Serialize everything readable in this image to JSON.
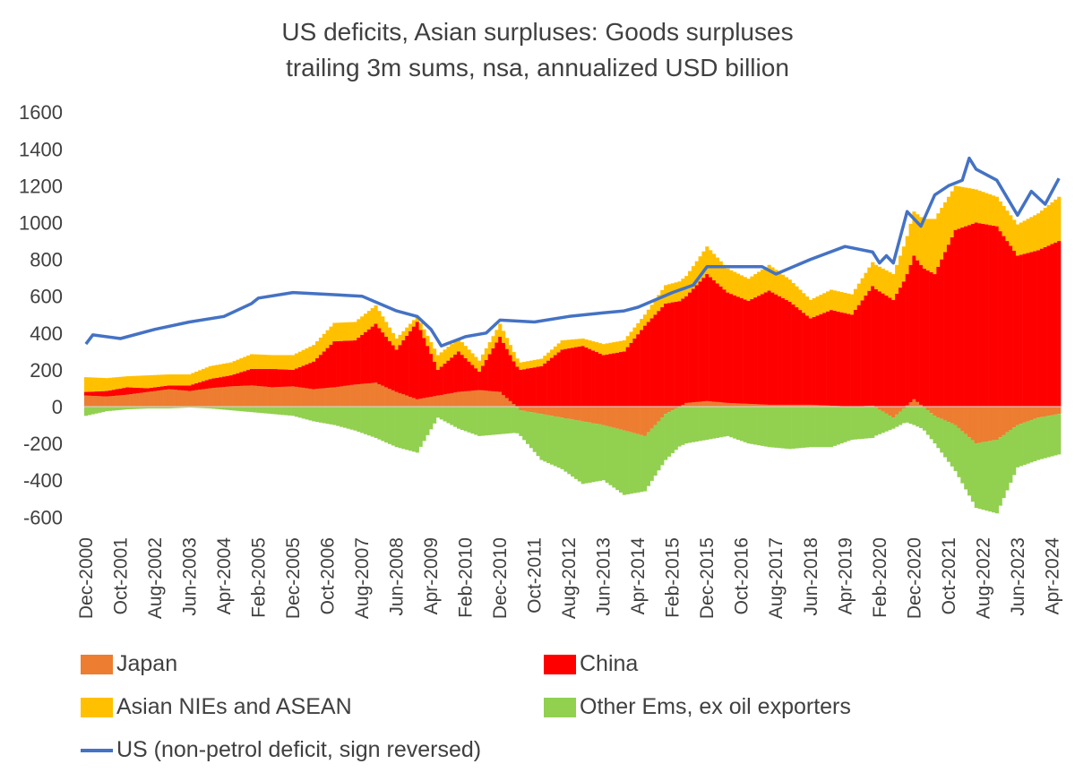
{
  "chart_data": {
    "type": "bar",
    "title": "US deficits, Asian surpluses: Goods surpluses",
    "subtitle": "trailing 3m sums, nsa, annualized USD billion",
    "ylim": [
      -600,
      1600
    ],
    "yticks": [
      -600,
      -400,
      -200,
      0,
      200,
      400,
      600,
      800,
      1000,
      1200,
      1400,
      1600
    ],
    "x_start": "Dec-2000",
    "x_end": "Jun-2024",
    "xtick_labels": [
      "Dec-2000",
      "Oct-2001",
      "Aug-2002",
      "Jun-2003",
      "Apr-2004",
      "Feb-2005",
      "Dec-2005",
      "Oct-2006",
      "Aug-2007",
      "Jun-2008",
      "Apr-2009",
      "Feb-2010",
      "Dec-2010",
      "Oct-2011",
      "Aug-2012",
      "Jun-2013",
      "Apr-2014",
      "Feb-2015",
      "Dec-2015",
      "Oct-2016",
      "Aug-2017",
      "Jun-2018",
      "Apr-2019",
      "Feb-2020",
      "Dec-2020",
      "Oct-2021",
      "Aug-2022",
      "Jun-2023",
      "Apr-2024"
    ],
    "series": [
      {
        "name": "Japan",
        "kind": "stacked-bar",
        "color": "#ed7d31",
        "x": [
          "Dec-2000",
          "Jun-2001",
          "Dec-2001",
          "Jun-2002",
          "Dec-2002",
          "Jun-2003",
          "Dec-2003",
          "Jun-2004",
          "Dec-2004",
          "Jun-2005",
          "Dec-2005",
          "Jun-2006",
          "Dec-2006",
          "Jun-2007",
          "Dec-2007",
          "Jun-2008",
          "Dec-2008",
          "Jun-2009",
          "Dec-2009",
          "Jun-2010",
          "Dec-2010",
          "Jun-2011",
          "Dec-2011",
          "Jun-2012",
          "Dec-2012",
          "Jun-2013",
          "Dec-2013",
          "Jun-2014",
          "Dec-2014",
          "Jun-2015",
          "Dec-2015",
          "Jun-2016",
          "Dec-2016",
          "Jun-2017",
          "Dec-2017",
          "Jun-2018",
          "Dec-2018",
          "Jun-2019",
          "Dec-2019",
          "Jun-2020",
          "Dec-2020",
          "Jun-2021",
          "Dec-2021",
          "Jun-2022",
          "Dec-2022",
          "Jun-2023",
          "Dec-2023",
          "Jun-2024"
        ],
        "values": [
          60,
          55,
          65,
          80,
          95,
          85,
          100,
          110,
          115,
          105,
          110,
          95,
          105,
          120,
          130,
          80,
          40,
          60,
          80,
          90,
          80,
          -20,
          -40,
          -60,
          -80,
          -100,
          -130,
          -160,
          -40,
          20,
          30,
          20,
          15,
          10,
          10,
          10,
          5,
          0,
          5,
          -60,
          40,
          -50,
          -100,
          -200,
          -180,
          -100,
          -60,
          -40
        ]
      },
      {
        "name": "China",
        "kind": "stacked-bar",
        "color": "#ff0000",
        "x": [
          "Dec-2000",
          "Jun-2001",
          "Dec-2001",
          "Jun-2002",
          "Dec-2002",
          "Jun-2003",
          "Dec-2003",
          "Jun-2004",
          "Dec-2004",
          "Jun-2005",
          "Dec-2005",
          "Jun-2006",
          "Dec-2006",
          "Jun-2007",
          "Dec-2007",
          "Jun-2008",
          "Dec-2008",
          "Jun-2009",
          "Dec-2009",
          "Jun-2010",
          "Dec-2010",
          "Jun-2011",
          "Dec-2011",
          "Jun-2012",
          "Dec-2012",
          "Jun-2013",
          "Dec-2013",
          "Jun-2014",
          "Dec-2014",
          "Jun-2015",
          "Dec-2015",
          "Jun-2016",
          "Dec-2016",
          "Jun-2017",
          "Dec-2017",
          "Jun-2018",
          "Dec-2018",
          "Jun-2019",
          "Dec-2019",
          "Jun-2020",
          "Dec-2020",
          "Jun-2021",
          "Dec-2021",
          "Jun-2022",
          "Dec-2022",
          "Jun-2023",
          "Dec-2023",
          "Jun-2024"
        ],
        "values": [
          20,
          30,
          40,
          20,
          20,
          30,
          50,
          60,
          90,
          100,
          90,
          150,
          250,
          240,
          320,
          230,
          420,
          140,
          220,
          100,
          300,
          200,
          220,
          310,
          330,
          280,
          300,
          440,
          560,
          580,
          690,
          600,
          560,
          620,
          560,
          470,
          520,
          500,
          650,
          580,
          780,
          720,
          960,
          1000,
          980,
          820,
          850,
          900
        ]
      },
      {
        "name": "Asian NIEs and ASEAN",
        "kind": "stacked-bar",
        "color": "#ffc000",
        "x": [
          "Dec-2000",
          "Jun-2001",
          "Dec-2001",
          "Jun-2002",
          "Dec-2002",
          "Jun-2003",
          "Dec-2003",
          "Jun-2004",
          "Dec-2004",
          "Jun-2005",
          "Dec-2005",
          "Jun-2006",
          "Dec-2006",
          "Jun-2007",
          "Dec-2007",
          "Jun-2008",
          "Dec-2008",
          "Jun-2009",
          "Dec-2009",
          "Jun-2010",
          "Dec-2010",
          "Jun-2011",
          "Dec-2011",
          "Jun-2012",
          "Dec-2012",
          "Jun-2013",
          "Dec-2013",
          "Jun-2014",
          "Dec-2014",
          "Jun-2015",
          "Dec-2015",
          "Jun-2016",
          "Dec-2016",
          "Jun-2017",
          "Dec-2017",
          "Jun-2018",
          "Dec-2018",
          "Jun-2019",
          "Dec-2019",
          "Jun-2020",
          "Dec-2020",
          "Jun-2021",
          "Dec-2021",
          "Jun-2022",
          "Dec-2022",
          "Jun-2023",
          "Dec-2023",
          "Jun-2024"
        ],
        "values": [
          80,
          70,
          60,
          70,
          60,
          60,
          70,
          70,
          80,
          75,
          80,
          90,
          100,
          100,
          100,
          60,
          30,
          80,
          70,
          60,
          70,
          40,
          40,
          50,
          40,
          60,
          60,
          60,
          100,
          110,
          150,
          130,
          120,
          140,
          120,
          100,
          110,
          110,
          130,
          140,
          240,
          300,
          240,
          180,
          160,
          170,
          200,
          240
        ]
      },
      {
        "name": "Other Ems, ex oil exporters",
        "kind": "stacked-bar",
        "color": "#92d050",
        "x": [
          "Dec-2000",
          "Jun-2001",
          "Dec-2001",
          "Jun-2002",
          "Dec-2002",
          "Jun-2003",
          "Dec-2003",
          "Jun-2004",
          "Dec-2004",
          "Jun-2005",
          "Dec-2005",
          "Jun-2006",
          "Dec-2006",
          "Jun-2007",
          "Dec-2007",
          "Jun-2008",
          "Dec-2008",
          "Jun-2009",
          "Dec-2009",
          "Jun-2010",
          "Dec-2010",
          "Jun-2011",
          "Dec-2011",
          "Jun-2012",
          "Dec-2012",
          "Jun-2013",
          "Dec-2013",
          "Jun-2014",
          "Dec-2014",
          "Jun-2015",
          "Dec-2015",
          "Jun-2016",
          "Dec-2016",
          "Jun-2017",
          "Dec-2017",
          "Jun-2018",
          "Dec-2018",
          "Jun-2019",
          "Dec-2019",
          "Jun-2020",
          "Dec-2020",
          "Jun-2021",
          "Dec-2021",
          "Jun-2022",
          "Dec-2022",
          "Jun-2023",
          "Dec-2023",
          "Jun-2024"
        ],
        "values": [
          -50,
          -25,
          -15,
          -10,
          -10,
          -5,
          -10,
          -20,
          -30,
          -40,
          -50,
          -80,
          -100,
          -130,
          -170,
          -220,
          -250,
          -60,
          -120,
          -160,
          -150,
          -140,
          -250,
          -280,
          -340,
          -300,
          -350,
          -300,
          -250,
          -200,
          -180,
          -160,
          -200,
          -220,
          -230,
          -220,
          -220,
          -180,
          -170,
          -60,
          -100,
          -150,
          -250,
          -350,
          -400,
          -230,
          -230,
          -220
        ]
      },
      {
        "name": "US (non-petrol deficit, sign reversed)",
        "kind": "line",
        "color": "#4472c4",
        "x": [
          "Dec-2000",
          "Feb-2001",
          "Oct-2001",
          "Aug-2002",
          "Jun-2003",
          "Apr-2004",
          "Dec-2004",
          "Feb-2005",
          "Dec-2005",
          "Oct-2006",
          "Aug-2007",
          "Jun-2008",
          "Dec-2008",
          "Apr-2009",
          "Jul-2009",
          "Feb-2010",
          "Aug-2010",
          "Dec-2010",
          "Oct-2011",
          "Aug-2012",
          "Jun-2013",
          "Dec-2013",
          "Apr-2014",
          "Feb-2015",
          "Aug-2015",
          "Dec-2015",
          "Oct-2016",
          "Apr-2017",
          "Aug-2017",
          "Jun-2018",
          "Apr-2019",
          "Dec-2019",
          "Apr-2020",
          "Feb-2020",
          "Jun-2020",
          "Oct-2020",
          "Feb-2021",
          "Jun-2021",
          "Oct-2021",
          "Feb-2022",
          "Apr-2022",
          "Jun-2022",
          "Dec-2022",
          "Jun-2023",
          "Oct-2023",
          "Feb-2024",
          "Jun-2024"
        ],
        "values": [
          340,
          390,
          370,
          420,
          460,
          490,
          560,
          590,
          620,
          610,
          600,
          520,
          490,
          420,
          330,
          380,
          400,
          470,
          460,
          490,
          510,
          520,
          540,
          620,
          660,
          760,
          760,
          760,
          720,
          800,
          870,
          840,
          820,
          780,
          780,
          1060,
          980,
          1150,
          1200,
          1230,
          1350,
          1290,
          1230,
          1040,
          1170,
          1100,
          1240
        ]
      }
    ]
  }
}
